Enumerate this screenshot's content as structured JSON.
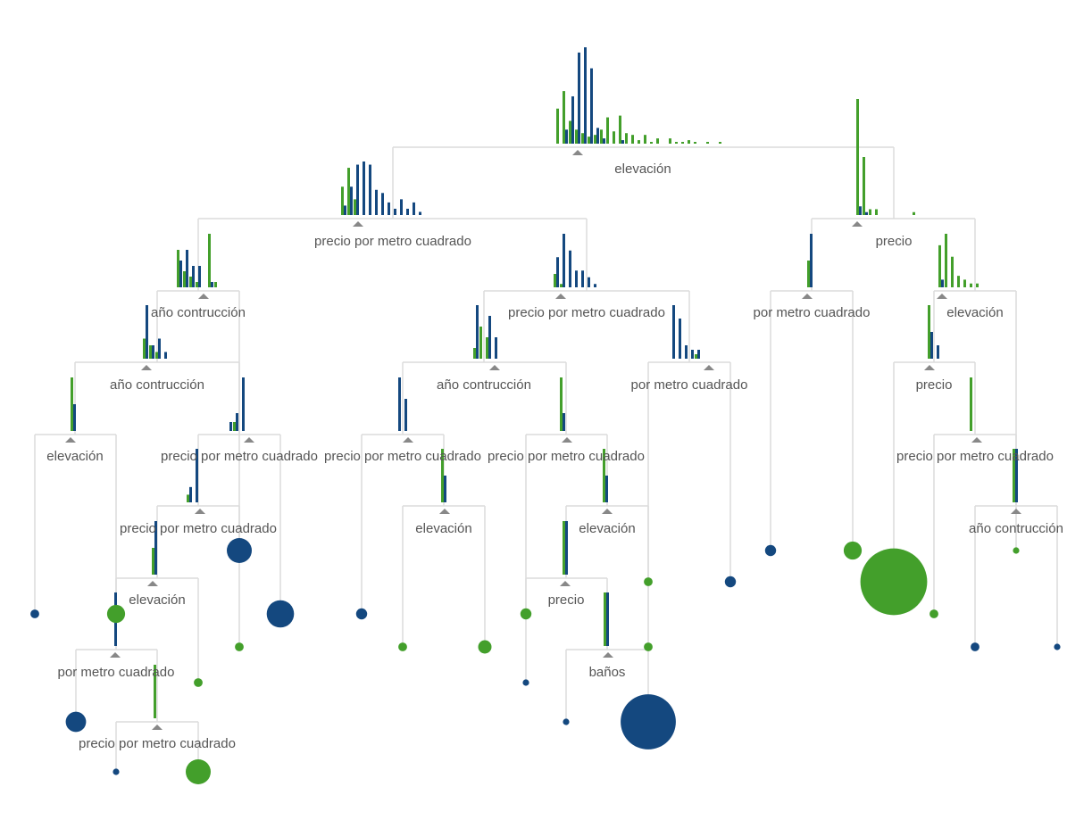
{
  "colors": {
    "class_a": "#14487f",
    "class_b": "#439f2b",
    "edge": "#dcdcdc",
    "split_marker": "#888888",
    "text": "#555555"
  },
  "nodes": [
    {
      "id": "n0",
      "label": "elevación",
      "a": [
        0,
        8,
        27,
        52,
        55,
        43,
        9,
        3,
        0,
        0,
        2,
        0,
        0,
        0,
        0,
        0,
        0,
        0,
        0,
        0,
        0,
        0,
        0,
        0,
        0,
        0,
        0
      ],
      "b": [
        20,
        30,
        13,
        8,
        6,
        4,
        5,
        8,
        15,
        7,
        16,
        6,
        5,
        2,
        5,
        1,
        3,
        0,
        3,
        1,
        1,
        2,
        1,
        0,
        1,
        0,
        1
      ]
    },
    {
      "id": "n1",
      "label": "precio por metro cuadrado",
      "a": [
        3,
        9,
        16,
        17,
        16,
        8,
        7,
        4,
        2,
        5,
        2,
        4,
        1
      ],
      "b": [
        9,
        15,
        5,
        0,
        0,
        0,
        0,
        0,
        0,
        0,
        0,
        0,
        0
      ]
    },
    {
      "id": "n2",
      "label": "precio",
      "a": [
        3,
        1,
        0,
        0,
        0,
        0,
        0,
        0,
        0,
        0
      ],
      "b": [
        40,
        20,
        2,
        2,
        0,
        0,
        0,
        0,
        0,
        1
      ]
    },
    {
      "id": "n3",
      "label": "año contrucción",
      "a": [
        5,
        7,
        4,
        4,
        0,
        1,
        0
      ],
      "b": [
        7,
        3,
        2,
        1,
        0,
        10,
        1
      ]
    },
    {
      "id": "n4",
      "label": "precio por metro cuadrado",
      "a": [
        9,
        16,
        11,
        5,
        5,
        3,
        1
      ],
      "b": [
        4,
        1,
        0,
        0,
        0,
        0,
        0
      ]
    },
    {
      "id": "n5",
      "label": "por metro cuadrado",
      "a": [
        2
      ],
      "b": [
        1
      ]
    },
    {
      "id": "n6",
      "label": "elevación",
      "a": [
        2,
        0,
        0,
        0,
        0,
        0,
        0
      ],
      "b": [
        11,
        14,
        8,
        3,
        2,
        1,
        1
      ]
    },
    {
      "id": "n7",
      "label": "año contrucción",
      "a": [
        8,
        2,
        3,
        1
      ],
      "b": [
        3,
        2,
        1,
        0
      ]
    },
    {
      "id": "n8",
      "label": "año contrucción",
      "a": [
        5,
        0,
        4,
        2
      ],
      "b": [
        1,
        3,
        2,
        0
      ]
    },
    {
      "id": "n9",
      "label": "por metro cuadrado",
      "a": [
        12,
        9,
        3,
        2,
        2
      ],
      "b": [
        0,
        0,
        0,
        0,
        1
      ]
    },
    {
      "id": "n10",
      "label": "precio",
      "a": [
        2,
        1
      ],
      "b": [
        4,
        0
      ]
    },
    {
      "id": "n11",
      "label": "elevación",
      "a": [
        1
      ],
      "b": [
        2
      ]
    },
    {
      "id": "n12",
      "label": "precio por metro cuadrado",
      "a": [
        1,
        2,
        6
      ],
      "b": [
        0,
        1,
        0
      ]
    },
    {
      "id": "n13",
      "label": "precio por metro cuadrado",
      "a": [
        5,
        3
      ],
      "b": [
        0,
        0
      ]
    },
    {
      "id": "n14",
      "label": "precio por metro cuadrado",
      "a": [
        1
      ],
      "b": [
        3
      ]
    },
    {
      "id": "n15",
      "label": "precio por metro cuadrado",
      "a": [
        0
      ],
      "b": [
        3
      ]
    },
    {
      "id": "n16",
      "label": "precio por metro cuadrado",
      "a": [
        2,
        7
      ],
      "b": [
        1,
        0
      ]
    },
    {
      "id": "n17",
      "label": "elevación",
      "a": [
        1
      ],
      "b": [
        2
      ]
    },
    {
      "id": "n18",
      "label": "elevación",
      "a": [
        1
      ],
      "b": [
        2
      ]
    },
    {
      "id": "n19",
      "label": "año contrucción",
      "a": [
        1
      ],
      "b": [
        1
      ]
    },
    {
      "id": "n20",
      "label": "elevación",
      "a": [
        2
      ],
      "b": [
        1
      ]
    },
    {
      "id": "n21",
      "label": "precio",
      "a": [
        1
      ],
      "b": [
        1
      ]
    },
    {
      "id": "n22",
      "label": "por metro cuadrado",
      "a": [
        2
      ],
      "b": [
        0
      ]
    },
    {
      "id": "n23",
      "label": "baños",
      "a": [
        1
      ],
      "b": [
        1
      ]
    },
    {
      "id": "n24",
      "label": "precio por metro cuadrado",
      "a": [
        0
      ],
      "b": [
        1
      ]
    }
  ],
  "leaves": [
    {
      "cls": "a",
      "size": 3
    },
    {
      "cls": "b",
      "size": 7
    },
    {
      "cls": "a",
      "size": 8
    },
    {
      "cls": "b",
      "size": 3
    },
    {
      "cls": "a",
      "size": 2
    },
    {
      "cls": "b",
      "size": 10
    },
    {
      "cls": "a",
      "size": 10
    },
    {
      "cls": "b",
      "size": 3
    },
    {
      "cls": "a",
      "size": 11
    },
    {
      "cls": "a",
      "size": 4
    },
    {
      "cls": "b",
      "size": 3
    },
    {
      "cls": "b",
      "size": 5
    },
    {
      "cls": "a",
      "size": 2
    },
    {
      "cls": "b",
      "size": 4
    },
    {
      "cls": "a",
      "size": 2
    },
    {
      "cls": "a",
      "size": 23
    },
    {
      "cls": "b",
      "size": 3
    },
    {
      "cls": "b",
      "size": 3
    },
    {
      "cls": "a",
      "size": 4
    },
    {
      "cls": "a",
      "size": 4
    },
    {
      "cls": "b",
      "size": 7
    },
    {
      "cls": "b",
      "size": 28
    },
    {
      "cls": "b",
      "size": 3
    },
    {
      "cls": "a",
      "size": 3
    },
    {
      "cls": "a",
      "size": 2
    },
    {
      "cls": "b",
      "size": 2
    }
  ]
}
